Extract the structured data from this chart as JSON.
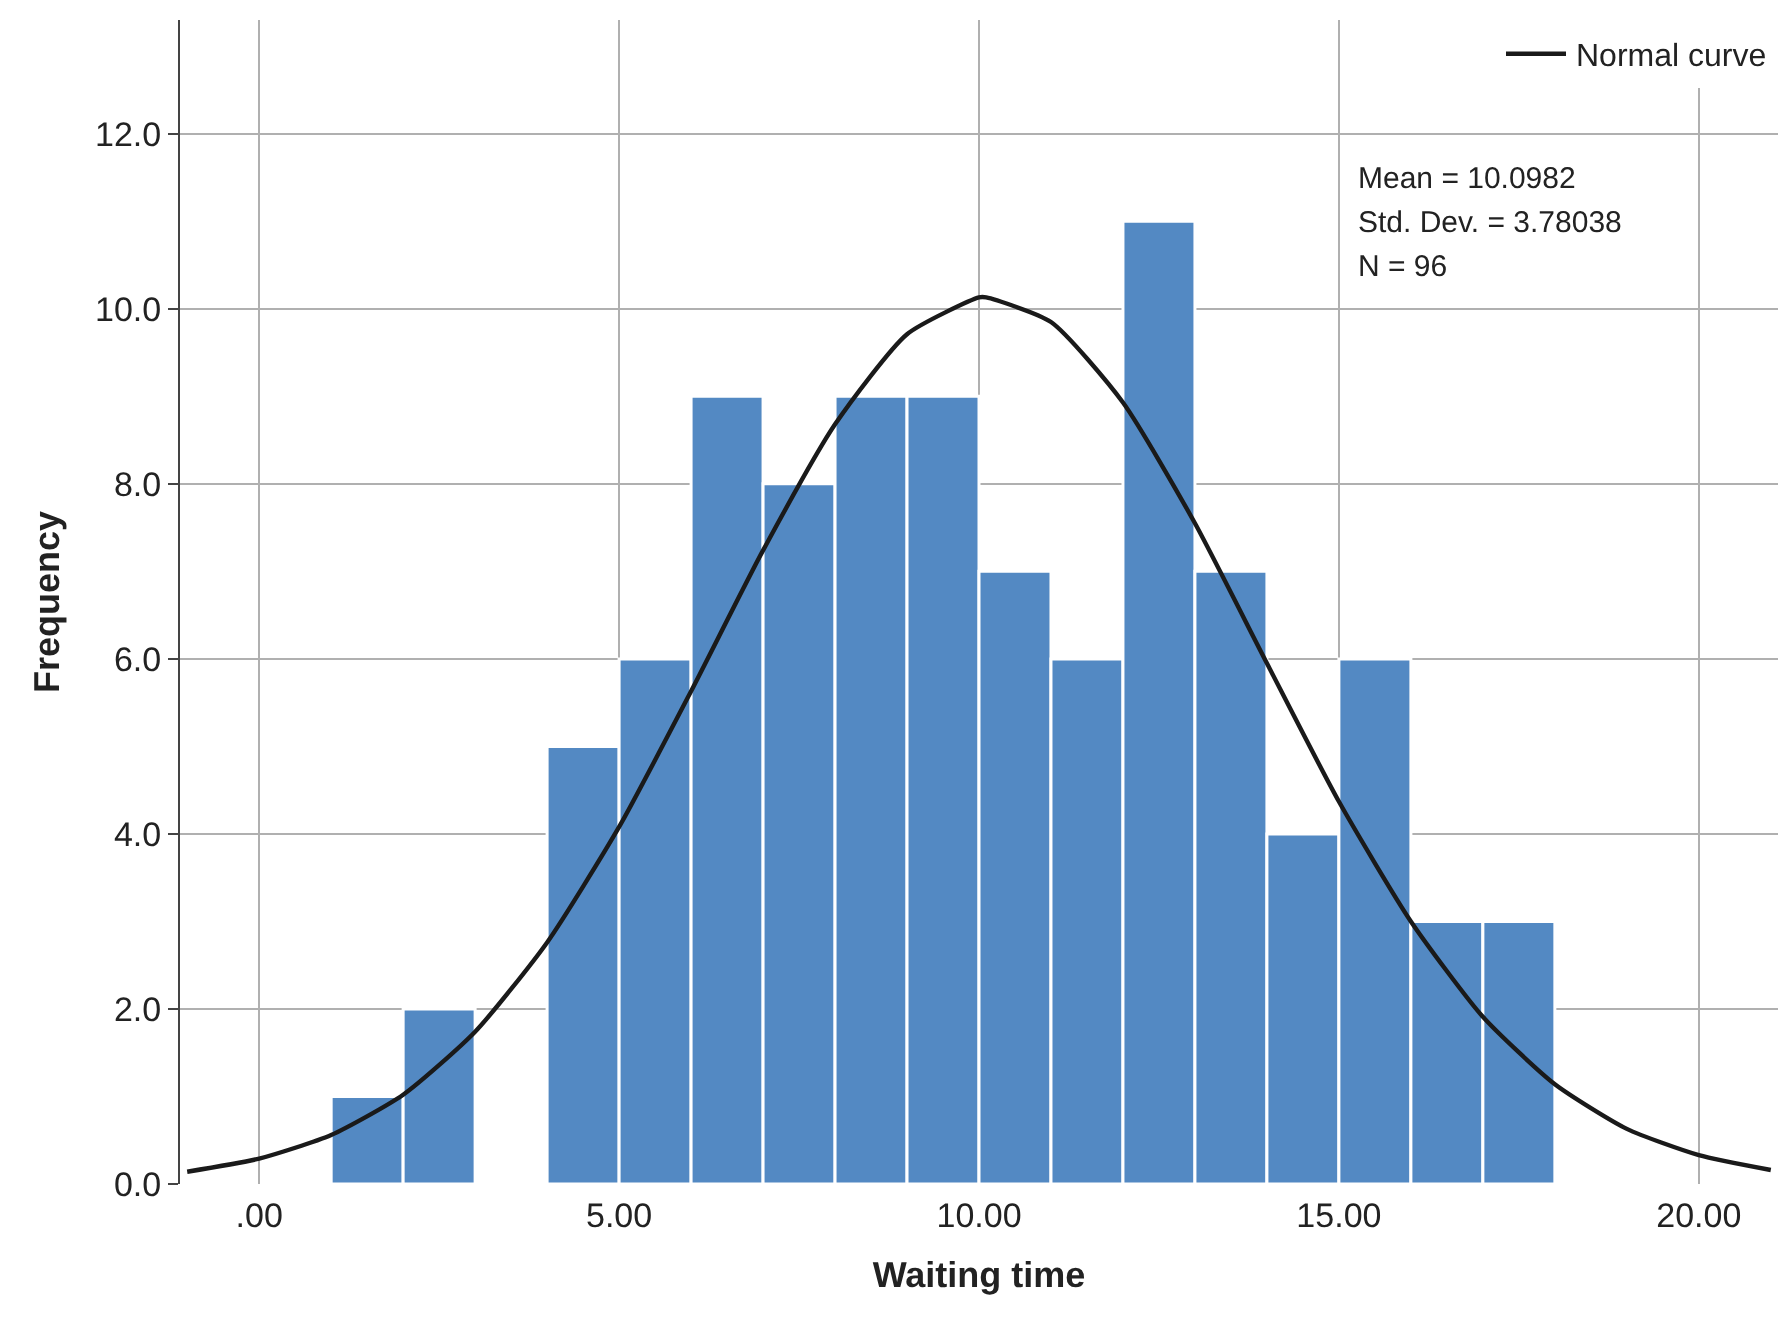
{
  "chart_data": {
    "type": "histogram",
    "xlabel": "Waiting time",
    "ylabel": "Frequency",
    "bins": [
      1,
      2,
      3,
      4,
      5,
      6,
      7,
      8,
      9,
      10,
      11,
      12,
      13,
      14,
      15,
      16,
      17,
      18
    ],
    "series": [
      {
        "color": "#5389c3",
        "values": [
          1,
          2,
          0,
          5,
          6,
          9,
          8,
          9,
          9,
          7,
          6,
          11,
          7,
          4,
          6,
          3,
          3
        ]
      },
      {
        "type": "line",
        "name": "Normal curve",
        "color": "#1a1a1a",
        "x": [
          -1,
          0,
          1,
          2,
          3,
          4,
          5,
          6,
          7,
          8,
          9,
          10,
          10.1,
          11,
          12,
          13,
          14,
          15,
          16,
          17,
          18,
          19,
          20,
          21
        ],
        "values": [
          0.14,
          0.29,
          0.56,
          1.02,
          1.74,
          2.76,
          4.08,
          5.63,
          7.24,
          8.68,
          9.71,
          10.13,
          10.13,
          9.85,
          8.93,
          7.55,
          5.95,
          4.37,
          3.0,
          1.91,
          1.14,
          0.63,
          0.33,
          0.16
        ]
      }
    ],
    "annotations": [
      "Mean = 10.0982",
      "Std. Dev. = 3.78038",
      "N = 96"
    ],
    "xlim": [
      -1.1,
      21.1
    ],
    "ylim": [
      0,
      13.3
    ],
    "xticks": [
      {
        "value": 0,
        "label": ".00"
      },
      {
        "value": 5,
        "label": "5.00"
      },
      {
        "value": 10,
        "label": "10.00"
      },
      {
        "value": 15,
        "label": "15.00"
      },
      {
        "value": 20,
        "label": "20.00"
      }
    ],
    "yticks": [
      {
        "value": 0,
        "label": "0.0"
      },
      {
        "value": 2,
        "label": "2.0"
      },
      {
        "value": 4,
        "label": "4.0"
      },
      {
        "value": 6,
        "label": "6.0"
      },
      {
        "value": 8,
        "label": "8.0"
      },
      {
        "value": 10,
        "label": "10.0"
      },
      {
        "value": 12,
        "label": "12.0"
      }
    ],
    "grid": true,
    "legend": "top right",
    "line_style": "solid",
    "marker": "none"
  }
}
